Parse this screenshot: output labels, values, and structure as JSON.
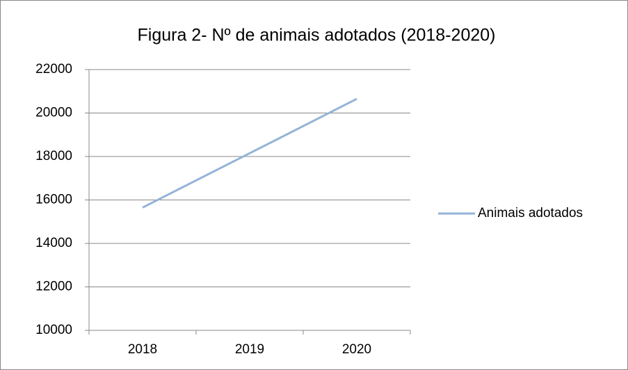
{
  "chart_data": {
    "type": "line",
    "title": "Figura 2- Nº de animais adotados (2018-2020)",
    "categories": [
      "2018",
      "2019",
      "2020"
    ],
    "series": [
      {
        "name": "Animais adotados",
        "color": "#95b3d7",
        "values": [
          15650,
          18150,
          20650
        ]
      }
    ],
    "ylim": [
      10000,
      22000
    ],
    "yticks": [
      10000,
      12000,
      14000,
      16000,
      18000,
      20000,
      22000
    ],
    "grid": true,
    "legend": "right"
  }
}
